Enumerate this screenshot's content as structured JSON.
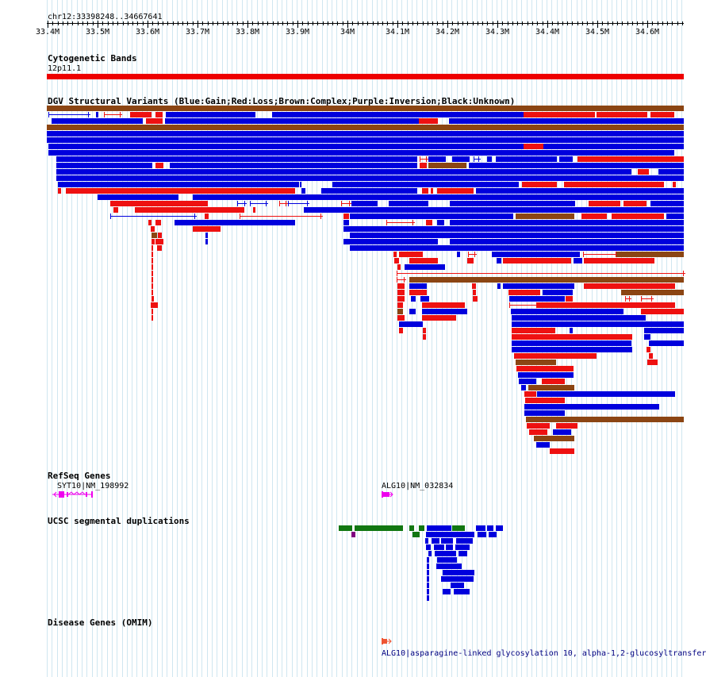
{
  "ruler": {
    "locus": "chr12:33398248..34667641",
    "ticks": [
      "33.4M",
      "33.5M",
      "33.6M",
      "33.7M",
      "33.8M",
      "33.9M",
      "34M",
      "34.1M",
      "34.2M",
      "34.3M",
      "34.4M",
      "34.5M",
      "34.6M"
    ]
  },
  "cytoband": {
    "title": "Cytogenetic Bands",
    "band_label": "12p11.1",
    "color": "#ee0000"
  },
  "dgv": {
    "title": "DGV Structural Variants (Blue:Gain;Red:Loss;Brown:Complex;Purple:Inversion;Black:Unknown)",
    "colors": {
      "gain": "#0000dd",
      "loss": "#ee1111",
      "complex": "#8b4513",
      "inversion": "#800080",
      "unknown": "#000000"
    }
  },
  "refseq": {
    "title": "RefSeq Genes",
    "genes": [
      {
        "label": "SYT10|NM_198992",
        "color": "#ee00ee"
      },
      {
        "label": "ALG10|NM_032834",
        "color": "#ee00ee"
      }
    ]
  },
  "segdups": {
    "title": "UCSC segmental duplications",
    "colors": {
      "green": "#117711",
      "blue": "#0000dd",
      "purple": "#800080"
    }
  },
  "omim": {
    "title": "Disease Genes (OMIM)",
    "gene_label": "ALG10|asparagine-linked glycosylation 10, alpha-1,2-glucosyltransfer…",
    "color": "#ee5533"
  }
}
